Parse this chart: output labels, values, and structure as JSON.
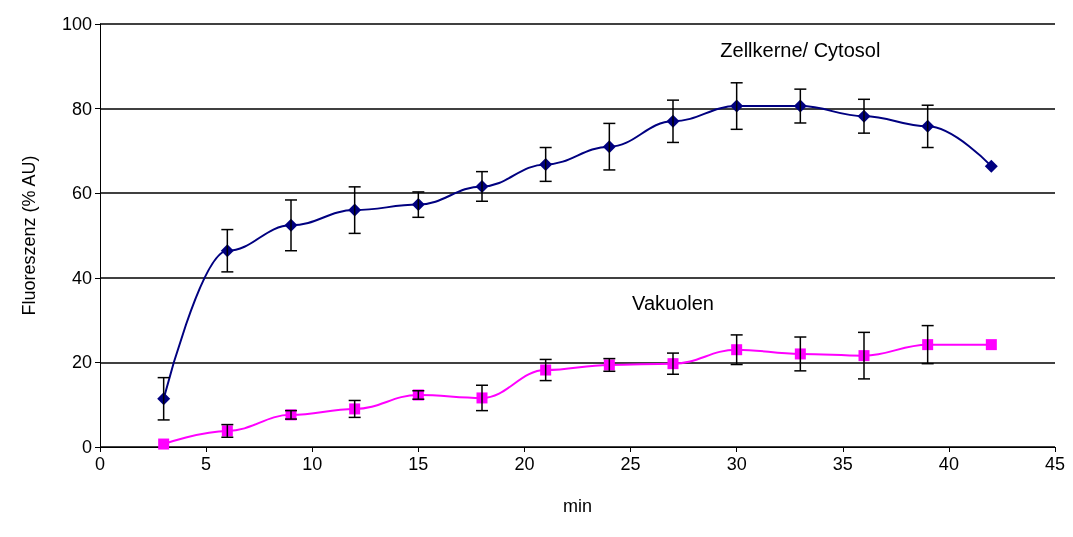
{
  "chart_data": {
    "type": "line",
    "xlabel": "min",
    "ylabel": "Fluoreszenz (% AU)",
    "xlim": [
      0,
      45
    ],
    "xticks": [
      0,
      5,
      10,
      15,
      20,
      25,
      30,
      35,
      40,
      45
    ],
    "ylim": [
      0,
      100
    ],
    "yticks": [
      0,
      20,
      40,
      60,
      80,
      100
    ],
    "grid": "y",
    "legend": false,
    "series": [
      {
        "name": "Zellkerne/ Cytosol",
        "color": "#000080",
        "marker": "diamond",
        "x": [
          3,
          6,
          9,
          12,
          15,
          18,
          21,
          24,
          27,
          30,
          33,
          36,
          39,
          42
        ],
        "values": [
          11.4,
          46.4,
          52.4,
          56,
          57.3,
          61.6,
          66.8,
          71,
          77,
          80.6,
          80.6,
          78.2,
          75.8,
          66.4
        ],
        "errors": [
          5,
          5,
          6,
          5.5,
          3,
          3.5,
          4,
          5.5,
          5,
          5.5,
          4,
          4,
          5,
          null
        ]
      },
      {
        "name": "Vakuolen",
        "color": "#ff00ff",
        "marker": "square",
        "x": [
          3,
          6,
          9,
          12,
          15,
          18,
          21,
          24,
          27,
          30,
          33,
          36,
          39,
          42
        ],
        "values": [
          0.7,
          3.8,
          7.6,
          9,
          12.3,
          11.6,
          18.2,
          19.4,
          19.7,
          23,
          22,
          21.6,
          24.2,
          24.2
        ],
        "errors": [
          null,
          1.5,
          1,
          2,
          1,
          3,
          2.5,
          1.5,
          2.5,
          3.5,
          4,
          5.5,
          4.5,
          null
        ]
      }
    ]
  }
}
